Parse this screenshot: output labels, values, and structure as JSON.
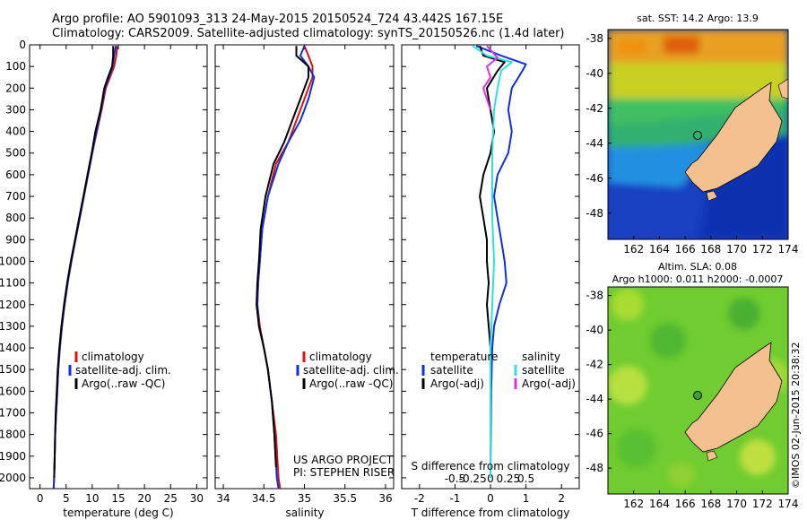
{
  "header": {
    "line1": "Argo profile: AO 5901093_313 24-May-2015 20150524_724 43.442S 167.15E",
    "line2": "Climatology: CARS2009. Satellite-adjusted climatology: synTS_20150526.nc (1.4d later)"
  },
  "colors": {
    "climatology": "#e01010",
    "satellite": "#1030e0",
    "argo": "#000000",
    "sal_satellite": "#30e0e0",
    "sal_argo": "#e030e0",
    "land": "#f4c090"
  },
  "chart_data": [
    {
      "type": "line",
      "panel": "temperature",
      "xlabel": "temperature (deg C)",
      "ylabel": "",
      "xlim": [
        -2,
        32
      ],
      "ylim": [
        2050,
        0
      ],
      "xticks": [
        "0",
        "5",
        "10",
        "15",
        "20",
        "25",
        "30"
      ],
      "yticks": [
        "0",
        "100",
        "200",
        "300",
        "400",
        "500",
        "600",
        "700",
        "800",
        "900",
        "1000",
        "1100",
        "1200",
        "1300",
        "1400",
        "1500",
        "1600",
        "1700",
        "1800",
        "1900",
        "2000"
      ],
      "legend": [
        "climatology",
        "satellite-adj. clim.",
        "Argo(..raw -QC)"
      ],
      "series": [
        {
          "name": "climatology",
          "color": "#e01010",
          "points": [
            [
              14.8,
              5
            ],
            [
              14.6,
              50
            ],
            [
              14.2,
              100
            ],
            [
              13.4,
              150
            ],
            [
              12.6,
              200
            ],
            [
              11.8,
              300
            ],
            [
              10.9,
              400
            ],
            [
              10,
              500
            ],
            [
              9.2,
              600
            ],
            [
              8.4,
              700
            ],
            [
              7.6,
              800
            ],
            [
              6.8,
              900
            ],
            [
              6.0,
              1000
            ],
            [
              5.3,
              1100
            ],
            [
              4.7,
              1200
            ],
            [
              4.2,
              1300
            ],
            [
              3.8,
              1400
            ],
            [
              3.5,
              1500
            ],
            [
              3.3,
              1600
            ],
            [
              3.1,
              1700
            ],
            [
              2.9,
              1800
            ],
            [
              2.8,
              1900
            ],
            [
              2.7,
              2000
            ],
            [
              2.6,
              2050
            ]
          ]
        },
        {
          "name": "satellite-adj. clim.",
          "color": "#1030e0",
          "points": [
            [
              14.5,
              5
            ],
            [
              14.2,
              50
            ],
            [
              13.9,
              100
            ],
            [
              13.2,
              150
            ],
            [
              12.4,
              200
            ],
            [
              11.7,
              300
            ],
            [
              10.8,
              400
            ],
            [
              10,
              500
            ],
            [
              9.2,
              600
            ],
            [
              8.4,
              700
            ],
            [
              7.6,
              800
            ],
            [
              6.8,
              900
            ],
            [
              6.0,
              1000
            ],
            [
              5.3,
              1100
            ],
            [
              4.7,
              1200
            ],
            [
              4.2,
              1300
            ],
            [
              3.8,
              1400
            ],
            [
              3.5,
              1500
            ],
            [
              3.3,
              1600
            ],
            [
              3.1,
              1700
            ],
            [
              2.9,
              1800
            ],
            [
              2.8,
              1900
            ],
            [
              2.7,
              2000
            ],
            [
              2.6,
              2050
            ]
          ]
        },
        {
          "name": "Argo(..raw -QC)",
          "color": "#000000",
          "points": [
            [
              14.0,
              5
            ],
            [
              14.0,
              50
            ],
            [
              13.8,
              100
            ],
            [
              13.0,
              150
            ],
            [
              12.3,
              200
            ],
            [
              11.6,
              300
            ],
            [
              10.6,
              400
            ],
            [
              9.9,
              500
            ],
            [
              9.1,
              600
            ],
            [
              8.3,
              700
            ],
            [
              7.5,
              800
            ],
            [
              6.7,
              900
            ],
            [
              5.9,
              1000
            ],
            [
              5.2,
              1100
            ],
            [
              4.6,
              1200
            ],
            [
              4.1,
              1300
            ],
            [
              3.7,
              1400
            ],
            [
              3.4,
              1500
            ],
            [
              3.2,
              1600
            ],
            [
              3.0,
              1700
            ],
            [
              2.9,
              1800
            ],
            [
              2.8,
              1900
            ],
            [
              2.7,
              2000
            ]
          ]
        }
      ]
    },
    {
      "type": "line",
      "panel": "salinity",
      "xlabel": "salinity",
      "xlim": [
        33.9,
        36.1
      ],
      "ylim": [
        2050,
        0
      ],
      "xticks": [
        "34",
        "34.5",
        "35",
        "35.5",
        "36"
      ],
      "legend": [
        "climatology",
        "satellite-adj. clim.",
        "Argo(..raw -QC)"
      ],
      "annotation": [
        "US ARGO PROJECT",
        "PI: STEPHEN RISER"
      ],
      "series": [
        {
          "name": "climatology",
          "color": "#e01010",
          "points": [
            [
              35.0,
              5
            ],
            [
              35.05,
              50
            ],
            [
              35.1,
              100
            ],
            [
              35.1,
              150
            ],
            [
              35.0,
              250
            ],
            [
              34.9,
              350
            ],
            [
              34.8,
              450
            ],
            [
              34.65,
              550
            ],
            [
              34.55,
              700
            ],
            [
              34.48,
              850
            ],
            [
              34.45,
              1000
            ],
            [
              34.43,
              1100
            ],
            [
              34.42,
              1200
            ],
            [
              34.45,
              1300
            ],
            [
              34.5,
              1400
            ],
            [
              34.55,
              1500
            ],
            [
              34.6,
              1650
            ],
            [
              34.65,
              1800
            ],
            [
              34.68,
              2000
            ],
            [
              34.7,
              2050
            ]
          ]
        },
        {
          "name": "satellite-adj. clim.",
          "color": "#1030e0",
          "points": [
            [
              35.0,
              5
            ],
            [
              34.95,
              50
            ],
            [
              35.05,
              100
            ],
            [
              35.12,
              150
            ],
            [
              35.05,
              250
            ],
            [
              34.95,
              350
            ],
            [
              34.8,
              450
            ],
            [
              34.68,
              550
            ],
            [
              34.55,
              700
            ],
            [
              34.48,
              850
            ],
            [
              34.45,
              1000
            ],
            [
              34.43,
              1100
            ],
            [
              34.42,
              1200
            ],
            [
              34.44,
              1300
            ],
            [
              34.5,
              1400
            ],
            [
              34.55,
              1500
            ],
            [
              34.6,
              1650
            ],
            [
              34.63,
              1800
            ],
            [
              34.66,
              2000
            ],
            [
              34.68,
              2050
            ]
          ]
        },
        {
          "name": "Argo(..raw -QC)",
          "color": "#000000",
          "points": [
            [
              34.9,
              5
            ],
            [
              34.9,
              50
            ],
            [
              35.05,
              100
            ],
            [
              35.05,
              150
            ],
            [
              34.95,
              250
            ],
            [
              34.85,
              350
            ],
            [
              34.75,
              450
            ],
            [
              34.62,
              550
            ],
            [
              34.52,
              700
            ],
            [
              34.46,
              850
            ],
            [
              34.44,
              1000
            ],
            [
              34.42,
              1100
            ],
            [
              34.41,
              1200
            ],
            [
              34.44,
              1300
            ],
            [
              34.5,
              1400
            ],
            [
              34.55,
              1500
            ],
            [
              34.6,
              1650
            ],
            [
              34.63,
              1800
            ],
            [
              34.65,
              1950
            ]
          ]
        }
      ]
    },
    {
      "type": "line",
      "panel": "difference",
      "xlabel": "T difference from climatology",
      "xlabel2": "S difference from climatology",
      "xlim": [
        -2.5,
        2.5
      ],
      "ylim": [
        2050,
        0
      ],
      "xticks": [
        "-2",
        "-1",
        "0",
        "1",
        "2"
      ],
      "xticks2": [
        "-0.5",
        "-0.25",
        "0",
        "0.25",
        "0.5"
      ],
      "legend_temperature": {
        "heading": "temperature",
        "items": [
          "satellite",
          "Argo(-adj)"
        ]
      },
      "legend_salinity": {
        "heading": "salinity",
        "items": [
          "satellite",
          "Argo(-adj)"
        ]
      },
      "series": [
        {
          "name": "satellite",
          "color": "#1030e0",
          "points": [
            [
              -0.4,
              5
            ],
            [
              0.3,
              50
            ],
            [
              1.0,
              90
            ],
            [
              0.9,
              120
            ],
            [
              0.6,
              200
            ],
            [
              0.5,
              300
            ],
            [
              0.6,
              400
            ],
            [
              0.5,
              500
            ],
            [
              0.2,
              600
            ],
            [
              0.1,
              700
            ],
            [
              0.2,
              800
            ],
            [
              0.3,
              900
            ],
            [
              0.4,
              1000
            ],
            [
              0.45,
              1100
            ],
            [
              0.25,
              1200
            ],
            [
              0.1,
              1300
            ],
            [
              0.05,
              1400
            ],
            [
              0.02,
              1600
            ],
            [
              0.0,
              2000
            ]
          ]
        },
        {
          "name": "Argo(-adj)",
          "color": "#000000",
          "points": [
            [
              -0.3,
              5
            ],
            [
              -0.2,
              50
            ],
            [
              0.4,
              80
            ],
            [
              0.2,
              120
            ],
            [
              -0.1,
              200
            ],
            [
              0.0,
              300
            ],
            [
              0.1,
              400
            ],
            [
              0.0,
              500
            ],
            [
              -0.2,
              600
            ],
            [
              -0.3,
              700
            ],
            [
              -0.2,
              800
            ],
            [
              -0.1,
              900
            ],
            [
              -0.1,
              1000
            ],
            [
              -0.05,
              1100
            ],
            [
              -0.1,
              1200
            ],
            [
              -0.05,
              1300
            ],
            [
              0.0,
              1400
            ],
            [
              0.0,
              1600
            ],
            [
              0.0,
              1950
            ]
          ]
        },
        {
          "name": "salinity satellite",
          "color": "#30e0e0",
          "points": [
            [
              -0.5,
              5
            ],
            [
              -0.1,
              50
            ],
            [
              0.6,
              80
            ],
            [
              0.3,
              120
            ],
            [
              0.2,
              200
            ],
            [
              0.1,
              300
            ],
            [
              0.05,
              500
            ],
            [
              0.05,
              800
            ],
            [
              0.1,
              1000
            ],
            [
              0.05,
              1200
            ],
            [
              0.0,
              1400
            ],
            [
              0.0,
              2000
            ]
          ]
        },
        {
          "name": "salinity Argo(-adj)",
          "color": "#e030e0",
          "points": [
            [
              -0.1,
              5
            ],
            [
              0.2,
              60
            ],
            [
              -0.1,
              100
            ],
            [
              0.0,
              150
            ],
            [
              -0.2,
              200
            ],
            [
              -0.1,
              250
            ],
            [
              0.0,
              300
            ]
          ]
        }
      ]
    },
    {
      "type": "heatmap",
      "panel": "sst-map",
      "title": "sat. SST: 14.2  Argo: 13.9",
      "xlim": [
        160,
        174
      ],
      "ylim": [
        -49.5,
        -37.5
      ],
      "xticks": [
        "162",
        "164",
        "166",
        "168",
        "170",
        "172",
        "174"
      ],
      "yticks": [
        "-38",
        "-40",
        "-42",
        "-44",
        "-46",
        "-48"
      ],
      "marker": {
        "lon": 167.15,
        "lat": -43.442
      }
    },
    {
      "type": "heatmap",
      "panel": "sla-map",
      "title": "Altim. SLA: 0.08",
      "subtitle": "Argo h1000: 0.011  h2000: -0.0007",
      "xlim": [
        160,
        174
      ],
      "ylim": [
        -49.5,
        -37.5
      ],
      "xticks": [
        "162",
        "164",
        "166",
        "168",
        "170",
        "172",
        "174"
      ],
      "yticks": [
        "-38",
        "-40",
        "-42",
        "-44",
        "-46",
        "-48"
      ],
      "marker": {
        "lon": 167.15,
        "lat": -43.442
      }
    }
  ],
  "footer": {
    "credit": "©IMOS 02-Jun-2015 20:38:32"
  }
}
